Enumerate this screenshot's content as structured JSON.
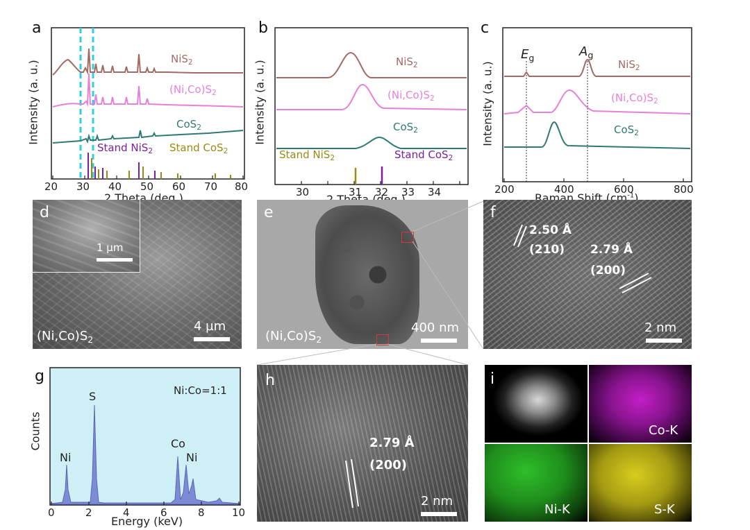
{
  "figure": {
    "a": {
      "label": "a",
      "xlabel": "2 Theta (deg.)",
      "ylabel": "Intensity (a. u.)",
      "xticks": [
        "20",
        "30",
        "40",
        "50",
        "60",
        "70",
        "80"
      ],
      "series": [
        "NiS",
        "(Ni,Co)S",
        "CoS"
      ],
      "ref_labels": [
        "Stand NiS",
        "Stand CoS"
      ],
      "subscript": "2"
    },
    "b": {
      "label": "b",
      "xlabel": "2 Theta (deg.)",
      "ylabel": "Intensity (a. u.)",
      "xticks": [
        "30",
        "31",
        "32",
        "33",
        "34"
      ],
      "series": [
        "NiS",
        "(Ni,Co)S",
        "CoS"
      ],
      "ref_labels": [
        "Stand NiS",
        "Stand CoS"
      ],
      "subscript": "2"
    },
    "c": {
      "label": "c",
      "xlabel": "Raman Shift (cm",
      "xlabel_sup": "-1",
      "xlabel_end": ")",
      "ylabel": "Intensity (a. u.)",
      "xticks": [
        "200",
        "400",
        "600",
        "800"
      ],
      "series": [
        "NiS",
        "(Ni,Co)S",
        "CoS"
      ],
      "modes": [
        "E",
        "A"
      ],
      "mode_sub": "g",
      "subscript": "2"
    },
    "d": {
      "label": "d",
      "scale_inset": "1 µm",
      "scale_main": "4 µm",
      "material": "(Ni,Co)S",
      "subscript": "2"
    },
    "e": {
      "label": "e",
      "scale": "400 nm",
      "material": "(Ni,Co)S",
      "subscript": "2"
    },
    "f": {
      "label": "f",
      "d1": "2.50 Å",
      "hkl1": "(210)",
      "d2": "2.79 Å",
      "hkl2": "(200)",
      "scale": "2 nm"
    },
    "g": {
      "label": "g",
      "xlabel": "Energy (keV)",
      "ylabel": "Counts",
      "xticks": [
        "0",
        "2",
        "4",
        "6",
        "8",
        "10"
      ],
      "ratio": "Ni:Co=1:1",
      "peaks": [
        "Ni",
        "S",
        "Co",
        "Ni"
      ]
    },
    "h": {
      "label": "h",
      "d": "2.79 Å",
      "hkl": "(200)",
      "scale": "2 nm"
    },
    "i": {
      "label": "i",
      "maps": [
        "Co-K",
        "Ni-K",
        "S-K"
      ]
    }
  },
  "colors": {
    "nis2": "#a36a63",
    "nicos2": "#e87fd8",
    "cos2": "#2e7a73",
    "ref_ni": "#7a1fa0",
    "ref_co": "#9a8a12",
    "edx_fill": "#7d8ad4",
    "edx_bg": "#cfeff7",
    "highlight": "#2fd0de"
  }
}
